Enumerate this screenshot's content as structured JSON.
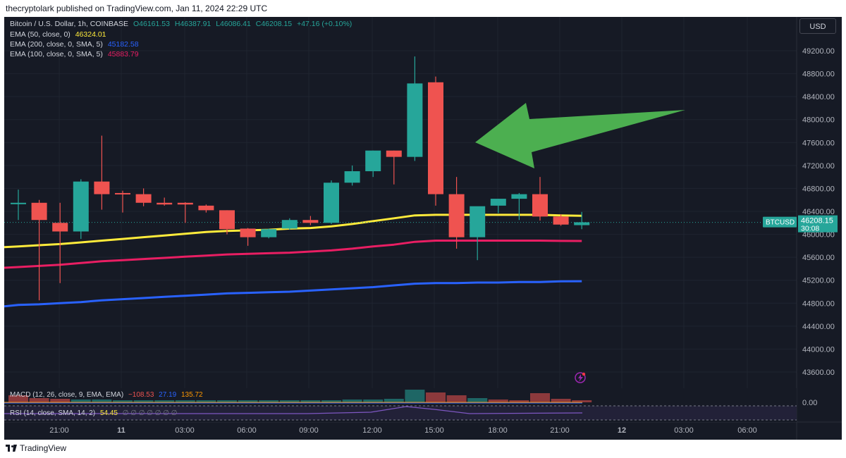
{
  "header": {
    "publisher_line": "thecryptolark published on TradingView.com, Jan 11, 2024 22:29 UTC"
  },
  "legend": {
    "symbol_line": {
      "label": "Bitcoin / U.S. Dollar, 1h, COINBASE",
      "open": "O46161.53",
      "high": "H46387.91",
      "low": "L46086.41",
      "close": "C46208.15",
      "change": "+47.16 (+0.10%)"
    },
    "ema50": {
      "label": "EMA (50, close, 0)",
      "value": "46324.01"
    },
    "ema200": {
      "label": "EMA (200, close, 0, SMA, 5)",
      "value": "45182.58"
    },
    "ema100": {
      "label": "EMA (100, close, 0, SMA, 5)",
      "value": "45883.79"
    }
  },
  "currency_button": "USD",
  "price_tag": {
    "symbol": "BTCUSD",
    "price": "46208.15",
    "countdown": "30:08"
  },
  "indicators": {
    "macd": {
      "label": "MACD (12, 26, close, 9, EMA, EMA)",
      "v1": "−108.53",
      "v2": "27.19",
      "v3": "135.72",
      "axis": "0.00"
    },
    "rsi": {
      "label": "RSI (14, close, SMA, 14, 2)",
      "v1": "54.45",
      "tail": "∅ ∅ ∅ ∅ ∅ ∅ ∅"
    }
  },
  "footer": {
    "brand": "TradingView"
  },
  "colors": {
    "up": "#26a69a",
    "down": "#ef5350",
    "ema50": "#ffeb3b",
    "ema200": "#2962ff",
    "ema100": "#e91e63",
    "arrow": "#4caf50",
    "background": "#161a25",
    "grid": "#1f2430",
    "text": "#b2b5be"
  },
  "chart_data": {
    "type": "candlestick",
    "title": "Bitcoin / U.S. Dollar, 1h, COINBASE",
    "x_tick_labels": [
      "21:00",
      "11",
      "03:00",
      "06:00",
      "09:00",
      "12:00",
      "15:00",
      "18:00",
      "21:00",
      "12",
      "03:00",
      "06:00"
    ],
    "y_tick_labels": [
      43600,
      44000,
      44400,
      44800,
      45200,
      45600,
      46000,
      46400,
      46800,
      47200,
      47600,
      48000,
      48400,
      48800,
      49200
    ],
    "ylim": [
      43200,
      49600
    ],
    "candles": [
      {
        "o": 46550,
        "h": 46780,
        "l": 46250,
        "c": 46550
      },
      {
        "o": 46550,
        "h": 46600,
        "l": 44850,
        "c": 46250
      },
      {
        "o": 46200,
        "h": 46550,
        "l": 45150,
        "c": 46050
      },
      {
        "o": 46050,
        "h": 46960,
        "l": 45920,
        "c": 46920
      },
      {
        "o": 46920,
        "h": 47720,
        "l": 46430,
        "c": 46700
      },
      {
        "o": 46720,
        "h": 46760,
        "l": 46380,
        "c": 46710
      },
      {
        "o": 46700,
        "h": 46800,
        "l": 46490,
        "c": 46550
      },
      {
        "o": 46550,
        "h": 46640,
        "l": 46500,
        "c": 46520
      },
      {
        "o": 46550,
        "h": 46560,
        "l": 46200,
        "c": 46520
      },
      {
        "o": 46500,
        "h": 46520,
        "l": 46380,
        "c": 46420
      },
      {
        "o": 46420,
        "h": 46420,
        "l": 46000,
        "c": 46090
      },
      {
        "o": 46100,
        "h": 46110,
        "l": 45800,
        "c": 45950
      },
      {
        "o": 45950,
        "h": 46100,
        "l": 45930,
        "c": 46090
      },
      {
        "o": 46100,
        "h": 46280,
        "l": 46080,
        "c": 46250
      },
      {
        "o": 46250,
        "h": 46320,
        "l": 46160,
        "c": 46200
      },
      {
        "o": 46200,
        "h": 46940,
        "l": 46180,
        "c": 46900
      },
      {
        "o": 46900,
        "h": 47200,
        "l": 46850,
        "c": 47100
      },
      {
        "o": 47100,
        "h": 47460,
        "l": 47000,
        "c": 47460
      },
      {
        "o": 47460,
        "h": 47460,
        "l": 46870,
        "c": 47350
      },
      {
        "o": 47350,
        "h": 49100,
        "l": 47280,
        "c": 48630
      },
      {
        "o": 48650,
        "h": 48750,
        "l": 46500,
        "c": 46700
      },
      {
        "o": 46700,
        "h": 47000,
        "l": 45750,
        "c": 45950
      },
      {
        "o": 45950,
        "h": 46480,
        "l": 45550,
        "c": 46490
      },
      {
        "o": 46500,
        "h": 46620,
        "l": 46370,
        "c": 46620
      },
      {
        "o": 46620,
        "h": 46720,
        "l": 46250,
        "c": 46700
      },
      {
        "o": 46700,
        "h": 47000,
        "l": 46240,
        "c": 46310
      },
      {
        "o": 46310,
        "h": 46350,
        "l": 46150,
        "c": 46170
      },
      {
        "o": 46160,
        "h": 46390,
        "l": 46090,
        "c": 46210
      }
    ],
    "series": [
      {
        "name": "EMA (50, close, 0)",
        "values": [
          45790,
          45810,
          45830,
          45860,
          45890,
          45920,
          45950,
          45980,
          46010,
          46040,
          46060,
          46070,
          46080,
          46100,
          46110,
          46140,
          46180,
          46230,
          46280,
          46330,
          46340,
          46340,
          46340,
          46340,
          46340,
          46340,
          46330,
          46324
        ]
      },
      {
        "name": "EMA (100, close, 0, SMA, 5)",
        "values": [
          45430,
          45450,
          45470,
          45500,
          45530,
          45550,
          45570,
          45590,
          45610,
          45630,
          45650,
          45660,
          45670,
          45680,
          45700,
          45720,
          45750,
          45790,
          45820,
          45870,
          45890,
          45890,
          45890,
          45890,
          45890,
          45890,
          45885,
          45884
        ]
      },
      {
        "name": "EMA (200, close, 0, SMA, 5)",
        "values": [
          44770,
          44780,
          44800,
          44820,
          44850,
          44870,
          44890,
          44910,
          44930,
          44950,
          44970,
          44980,
          44990,
          45000,
          45020,
          45040,
          45060,
          45080,
          45110,
          45140,
          45150,
          45150,
          45160,
          45160,
          45170,
          45170,
          45180,
          45183
        ]
      }
    ],
    "last_price": 46208.15
  }
}
